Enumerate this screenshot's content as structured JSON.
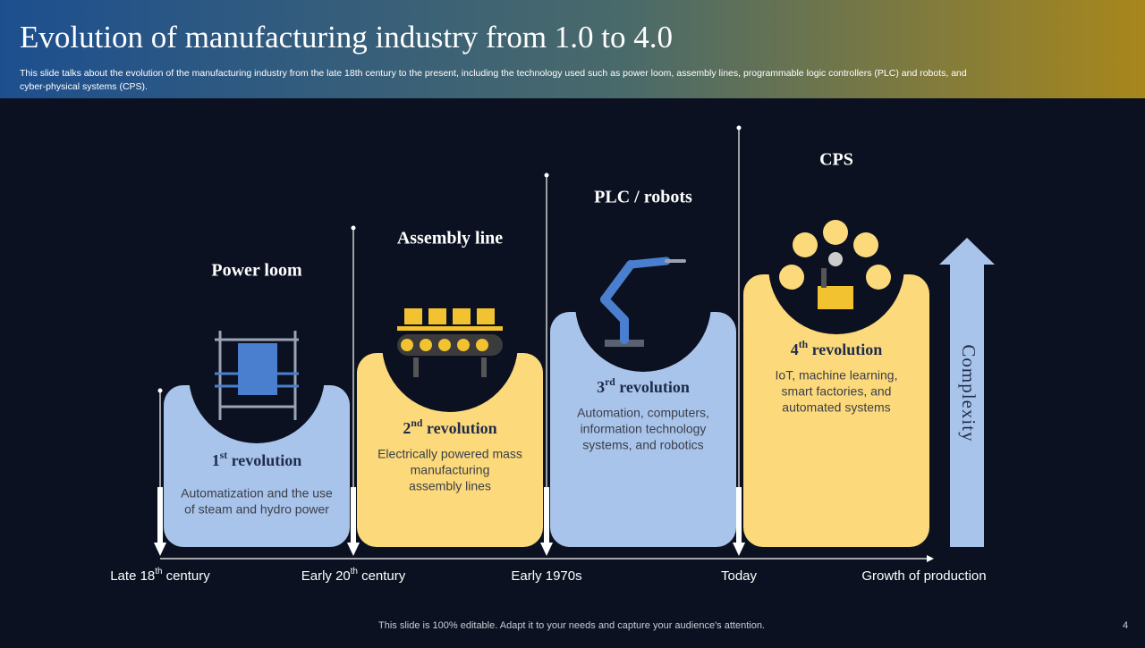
{
  "header": {
    "title": "Evolution of manufacturing industry from 1.0 to 4.0",
    "subtitle": [
      "This slide talks about the evolution of the manufacturing industry from the late 18th century to the present, including the technology used such as power loom, assembly lines, programmable logic controllers (PLC) and robots, and",
      "cyber-physical systems (CPS)."
    ]
  },
  "stages": [
    {
      "heading": "Power loom",
      "revolution": [
        {
          "text": "1"
        },
        {
          "sup": "st"
        },
        {
          "text": " revolution"
        }
      ],
      "description": [
        "Automatization and the use",
        "of steam and hydro power"
      ]
    },
    {
      "heading": "Assembly line",
      "revolution": [
        {
          "text": "2"
        },
        {
          "sup": "nd"
        },
        {
          "text": " revolution"
        }
      ],
      "description": [
        "Electrically powered mass",
        "manufacturing",
        "assembly lines"
      ]
    },
    {
      "heading": "PLC / robots",
      "revolution": [
        {
          "text": "3"
        },
        {
          "sup": "rd"
        },
        {
          "text": " revolution"
        }
      ],
      "description": [
        "Automation, computers,",
        "information technology",
        "systems, and robotics"
      ]
    },
    {
      "heading": "CPS",
      "revolution": [
        {
          "text": "4"
        },
        {
          "sup": "th"
        },
        {
          "text": " revolution"
        }
      ],
      "description": [
        "IoT, machine learning,",
        "smart factories, and",
        "automated systems"
      ]
    }
  ],
  "timeline": [
    [
      {
        "text": "Late 18"
      },
      {
        "sup": "th"
      },
      {
        "text": " century"
      }
    ],
    [
      {
        "text": "Early 20"
      },
      {
        "sup": "th"
      },
      {
        "text": " century"
      }
    ],
    [
      {
        "text": "Early 1970s"
      }
    ],
    [
      {
        "text": "Today"
      }
    ]
  ],
  "axis_end": "Growth of production",
  "complexity": "Complexity",
  "footer": {
    "note": "This slide is 100% editable. Adapt it to your needs and capture your audience's attention.",
    "page": "4"
  }
}
